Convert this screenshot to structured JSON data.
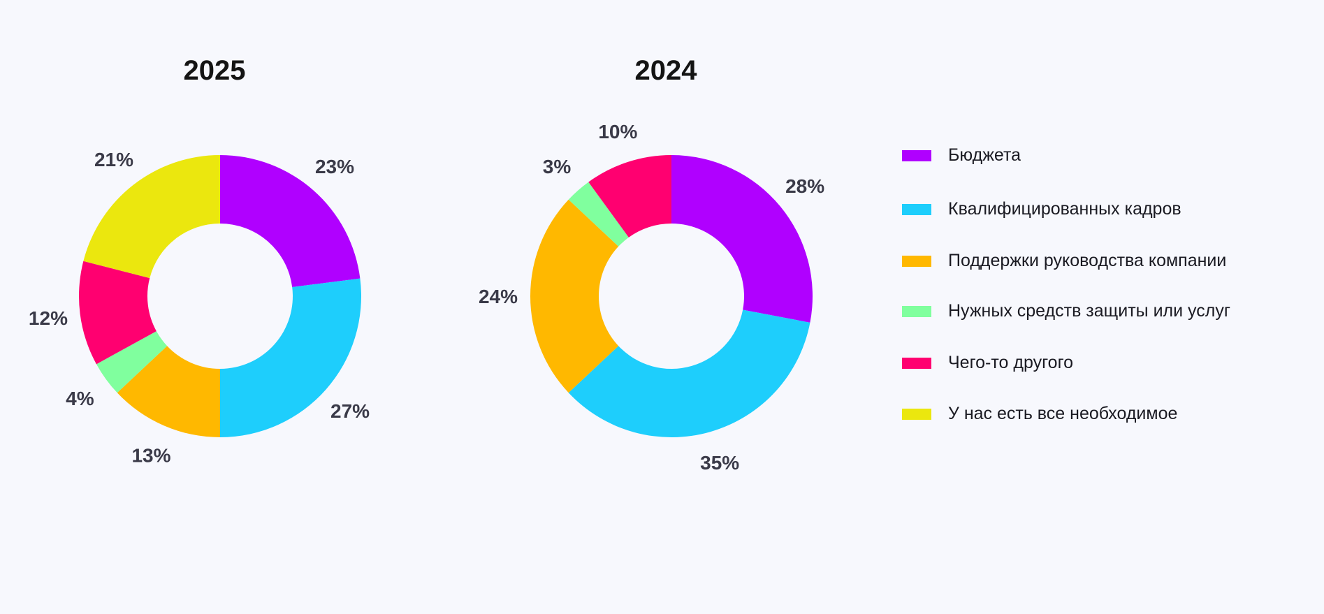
{
  "chart_data": {
    "type": "pie",
    "variant": "donut",
    "categories": [
      "Бюджета",
      "Квалифицированных кадров",
      "Поддержки руководства компании",
      "Нужных средств защиты или услуг",
      "Чего-то другого",
      "У нас есть все необходимое"
    ],
    "colors": [
      "#B000FF",
      "#1ECEFC",
      "#FFB800",
      "#80FF9E",
      "#FF0070",
      "#EBE70E"
    ],
    "charts": [
      {
        "title": "2025",
        "values": [
          23,
          27,
          13,
          4,
          12,
          21
        ],
        "labels": [
          "23%",
          "27%",
          "13%",
          "4%",
          "12%",
          "21%"
        ]
      },
      {
        "title": "2024",
        "values": [
          28,
          35,
          24,
          3,
          10,
          0
        ],
        "labels": [
          "28%",
          "35%",
          "24%",
          "3%",
          "10%",
          ""
        ]
      }
    ],
    "legend_position": "right"
  }
}
